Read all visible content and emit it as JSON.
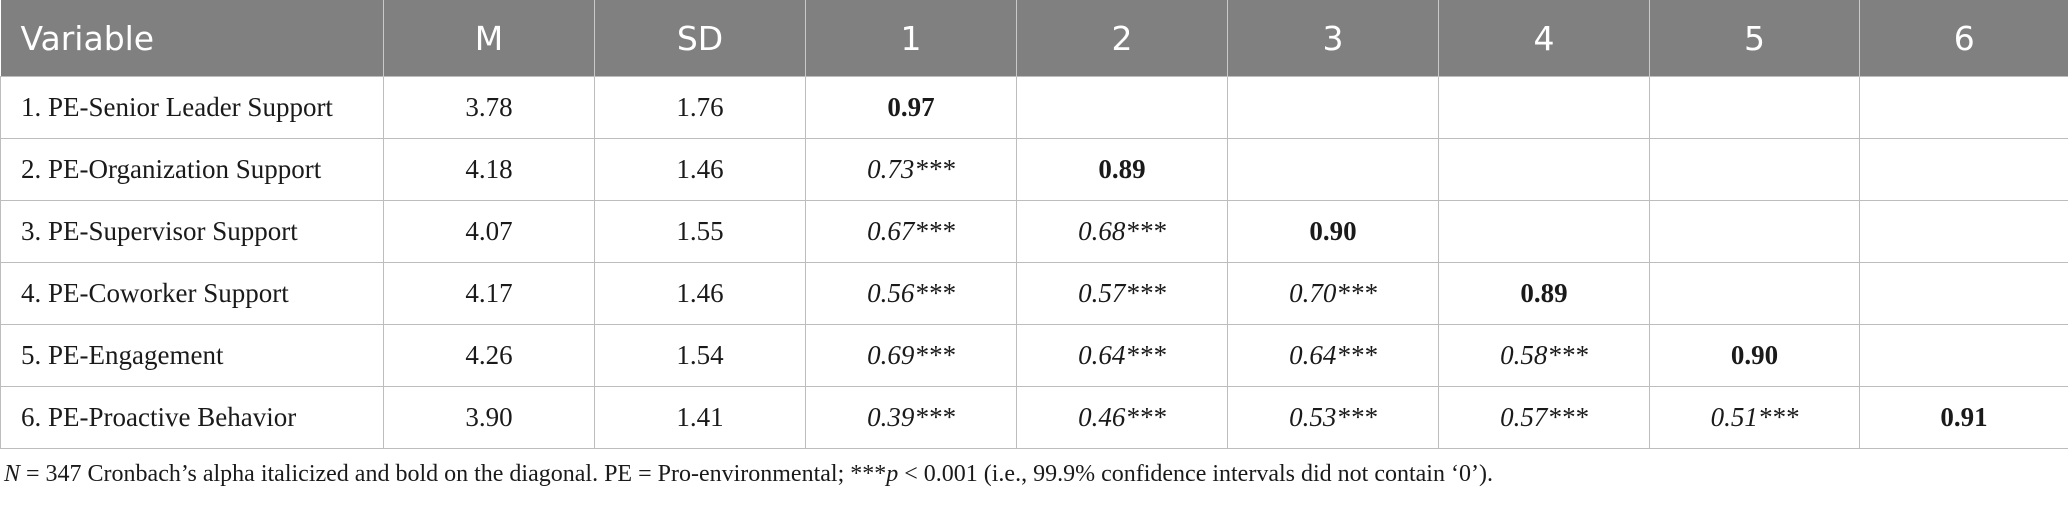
{
  "table": {
    "headers": [
      "Variable",
      "M",
      "SD",
      "1",
      "2",
      "3",
      "4",
      "5",
      "6"
    ],
    "rows": [
      {
        "variable": "1. PE-Senior Leader Support",
        "m": "3.78",
        "sd": "1.76",
        "c1": "0.97",
        "c2": "",
        "c3": "",
        "c4": "",
        "c5": "",
        "c6": ""
      },
      {
        "variable": "2. PE-Organization Support",
        "m": "4.18",
        "sd": "1.46",
        "c1": "0.73***",
        "c2": "0.89",
        "c3": "",
        "c4": "",
        "c5": "",
        "c6": ""
      },
      {
        "variable": "3. PE-Supervisor Support",
        "m": "4.07",
        "sd": "1.55",
        "c1": "0.67***",
        "c2": "0.68***",
        "c3": "0.90",
        "c4": "",
        "c5": "",
        "c6": ""
      },
      {
        "variable": "4. PE-Coworker Support",
        "m": "4.17",
        "sd": "1.46",
        "c1": "0.56***",
        "c2": "0.57***",
        "c3": "0.70***",
        "c4": "0.89",
        "c5": "",
        "c6": ""
      },
      {
        "variable": "5. PE-Engagement",
        "m": "4.26",
        "sd": "1.54",
        "c1": "0.69***",
        "c2": "0.64***",
        "c3": "0.64***",
        "c4": "0.58***",
        "c5": "0.90",
        "c6": ""
      },
      {
        "variable": "6. PE-Proactive Behavior",
        "m": "3.90",
        "sd": "1.41",
        "c1": "0.39***",
        "c2": "0.46***",
        "c3": "0.53***",
        "c4": "0.57***",
        "c5": "0.51***",
        "c6": "0.91"
      }
    ]
  },
  "note": {
    "n_symbol": "N",
    "part1": " = 347 Cronbach’s alpha italicized and bold on the diagonal. PE = Pro-environmental; ***",
    "p_symbol": "p",
    "part2": " < 0.001 (i.e., 99.9% confidence intervals did not contain ‘0’)."
  }
}
